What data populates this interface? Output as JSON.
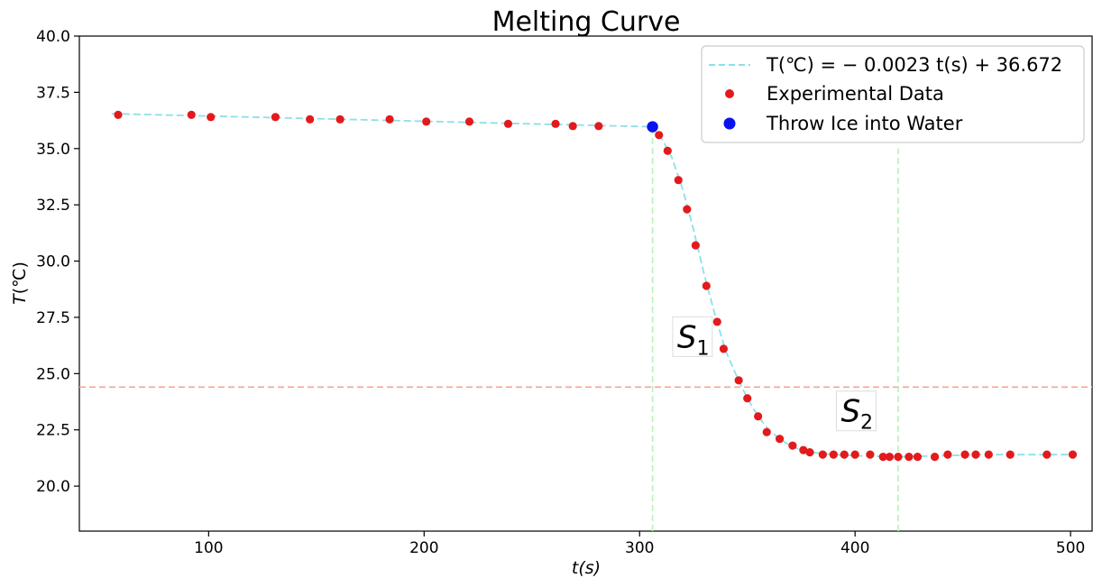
{
  "chart_data": {
    "type": "scatter",
    "title": "Melting Curve",
    "xlabel_var": "t",
    "xlabel_unit": "(s)",
    "ylabel_var": "T",
    "ylabel_unit": "(℃)",
    "xlim": [
      40,
      510
    ],
    "ylim": [
      18,
      40
    ],
    "x_ticks": [
      100,
      200,
      300,
      400,
      500
    ],
    "y_ticks": [
      20.0,
      22.5,
      25.0,
      27.5,
      30.0,
      32.5,
      35.0,
      37.5,
      40.0
    ],
    "grid": false,
    "legend_position": "top-right",
    "legend": [
      {
        "label_math": "T(℃) = − 0.0023 t(s) + 36.672",
        "marker": "dashed-line",
        "color": "#8be0e8"
      },
      {
        "label": "Experimental Data",
        "marker": "dot",
        "color": "#e31a1c"
      },
      {
        "label": "Throw Ice into Water",
        "marker": "dot",
        "color": "#0a12ee"
      }
    ],
    "fit_line": {
      "name": "T(℃) = − 0.0023 t(s) + 36.672",
      "color": "#8be0e8",
      "x": [
        55,
        305
      ],
      "y": [
        36.55,
        35.97
      ]
    },
    "fit_curve": {
      "color": "#8be0e8",
      "x": [
        305,
        310,
        315,
        320,
        325,
        330,
        335,
        340,
        345,
        350,
        355,
        360,
        365,
        370,
        375,
        380,
        385,
        390,
        400,
        420,
        440,
        460,
        480,
        502
      ],
      "y": [
        35.97,
        35.5,
        34.6,
        33.2,
        31.4,
        29.4,
        27.6,
        26.0,
        24.9,
        23.9,
        23.1,
        22.5,
        22.1,
        21.8,
        21.6,
        21.5,
        21.45,
        21.4,
        21.35,
        21.3,
        21.35,
        21.4,
        21.4,
        21.4
      ]
    },
    "series": [
      {
        "name": "Experimental Data",
        "color": "#e31a1c",
        "x": [
          58,
          92,
          101,
          131,
          147,
          161,
          184,
          201,
          221,
          239,
          261,
          269,
          281,
          309,
          313,
          318,
          322,
          326,
          331,
          336,
          339,
          346,
          350,
          355,
          359,
          365,
          371,
          376,
          379,
          385,
          390,
          395,
          400,
          407,
          413,
          416,
          420,
          425,
          429,
          437,
          443,
          451,
          456,
          462,
          472,
          489,
          501
        ],
        "y": [
          36.5,
          36.5,
          36.4,
          36.4,
          36.3,
          36.3,
          36.3,
          36.2,
          36.2,
          36.1,
          36.1,
          36.0,
          36.0,
          35.6,
          34.9,
          33.6,
          32.3,
          30.7,
          28.9,
          27.3,
          26.1,
          24.7,
          23.9,
          23.1,
          22.4,
          22.1,
          21.8,
          21.6,
          21.5,
          21.4,
          21.4,
          21.4,
          21.4,
          21.4,
          21.3,
          21.3,
          21.3,
          21.3,
          21.3,
          21.3,
          21.4,
          21.4,
          21.4,
          21.4,
          21.4,
          21.4,
          21.4
        ]
      },
      {
        "name": "Throw Ice into Water",
        "color": "#0a12ee",
        "x": [
          306
        ],
        "y": [
          35.97
        ]
      }
    ],
    "reference_lines": [
      {
        "orientation": "horizontal",
        "value": 24.4,
        "color": "#f7a58e"
      },
      {
        "orientation": "vertical",
        "value": 306,
        "y_to": 35.97,
        "color": "#b8f2b8"
      },
      {
        "orientation": "vertical",
        "value": 420,
        "y_to": 35.0,
        "color": "#b8f2b8"
      }
    ],
    "annotations": [
      {
        "letter": "S",
        "subscript": "1",
        "x": 317,
        "y": 26.4
      },
      {
        "letter": "S",
        "subscript": "2",
        "x": 393,
        "y": 23.1
      }
    ]
  }
}
